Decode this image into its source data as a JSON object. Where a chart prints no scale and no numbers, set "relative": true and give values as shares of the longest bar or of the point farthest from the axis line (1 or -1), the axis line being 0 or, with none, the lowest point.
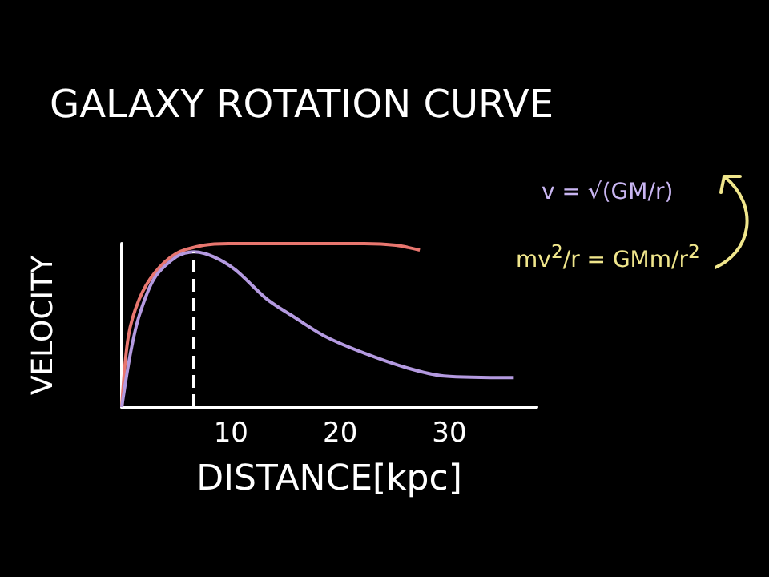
{
  "chart_data": {
    "type": "line",
    "title": "GALAXY ROTATION CURVE",
    "xlabel": "DISTANCE[kpc]",
    "ylabel": "VELOCITY",
    "relative": true,
    "xlim": [
      0,
      38
    ],
    "xticks": [
      10,
      20,
      30
    ],
    "grid": false,
    "marker": "none",
    "line_style": "solid",
    "annotations": [
      "v = √(GM/r)",
      "mv$^{2}$/r = GMm/r$^{2}$"
    ],
    "ref_lines": [
      {
        "axis": "x",
        "value": 6.6,
        "color": "#ffffff",
        "line_style": "dashed"
      }
    ],
    "series": [
      {
        "color": "#e8766f",
        "x": [
          0,
          0.6,
          1.6,
          3.0,
          5.0,
          7.5,
          9.8,
          22.2,
          25.1,
          27.3
        ],
        "values": [
          0,
          0.43,
          0.66,
          0.82,
          0.94,
          0.99,
          1.0,
          1.0,
          0.99,
          0.96
        ]
      },
      {
        "color": "#b49ae0",
        "x": [
          0,
          0.8,
          1.6,
          3.0,
          5.0,
          6.6,
          8.4,
          10.4,
          13.3,
          15.8,
          18.7,
          22.2,
          26.1,
          29.5,
          35.9
        ],
        "values": [
          0,
          0.33,
          0.56,
          0.79,
          0.92,
          0.95,
          0.92,
          0.84,
          0.66,
          0.55,
          0.43,
          0.33,
          0.24,
          0.19,
          0.18
        ]
      }
    ]
  }
}
